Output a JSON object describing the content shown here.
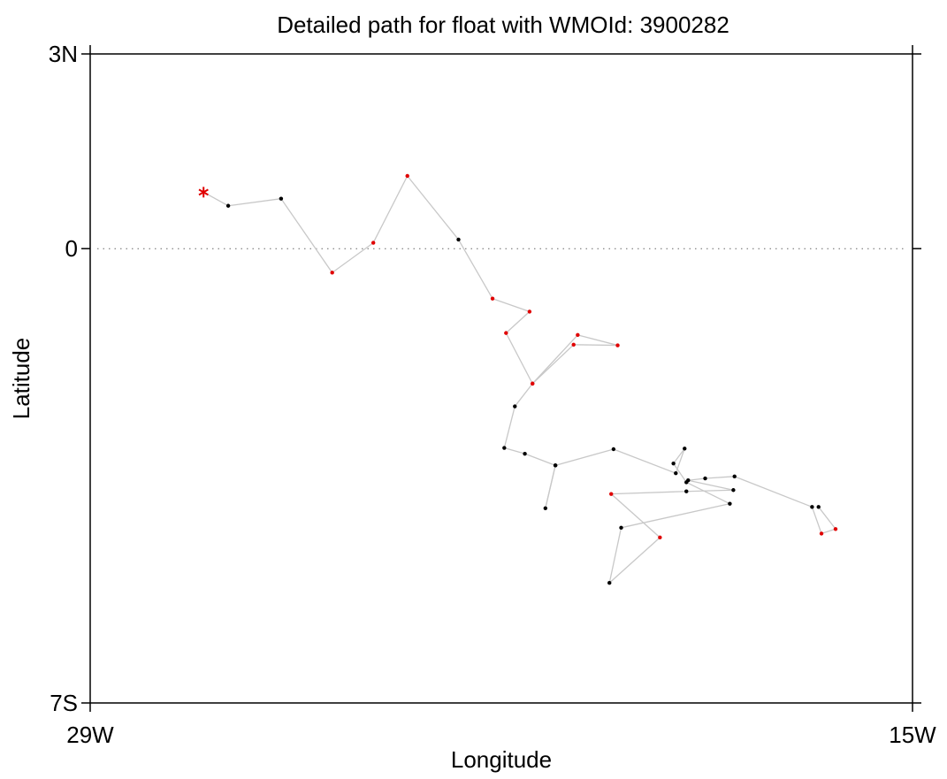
{
  "chart_data": {
    "type": "line",
    "title": "Detailed path for float with WMOId: 3900282",
    "xlabel": "Longitude",
    "ylabel": "Latitude",
    "xlim": [
      -29,
      -15
    ],
    "ylim": [
      -7,
      3
    ],
    "x_ticks": [
      {
        "value": -29,
        "label": "29W"
      },
      {
        "value": -15,
        "label": "15W"
      }
    ],
    "y_ticks": [
      {
        "value": 3,
        "label": "3N"
      },
      {
        "value": 0,
        "label": "0"
      },
      {
        "value": -7,
        "label": "7S"
      }
    ],
    "reference_lines": [
      {
        "axis": "y",
        "value": 0,
        "style": "dotted"
      }
    ],
    "colors": {
      "path": "#c8c8c8",
      "profile_default": "#000000",
      "profile_highlight": "#e00000",
      "start_marker": "#e00000",
      "frame": "#000000"
    },
    "start_marker": {
      "x": -27.07,
      "y": 0.87,
      "symbol": "asterisk"
    },
    "path_points": [
      {
        "x": -27.07,
        "y": 0.87,
        "highlight": true
      },
      {
        "x": -26.65,
        "y": 0.66,
        "highlight": false
      },
      {
        "x": -25.75,
        "y": 0.77,
        "highlight": false
      },
      {
        "x": -24.88,
        "y": -0.37,
        "highlight": true
      },
      {
        "x": -24.18,
        "y": 0.09,
        "highlight": true
      },
      {
        "x": -23.6,
        "y": 1.12,
        "highlight": true
      },
      {
        "x": -22.73,
        "y": 0.14,
        "highlight": false
      },
      {
        "x": -22.15,
        "y": -0.77,
        "highlight": true
      },
      {
        "x": -21.52,
        "y": -0.97,
        "highlight": true
      },
      {
        "x": -21.92,
        "y": -1.3,
        "highlight": true
      },
      {
        "x": -21.47,
        "y": -2.08,
        "highlight": true
      },
      {
        "x": -20.7,
        "y": -1.33,
        "highlight": true
      },
      {
        "x": -20.02,
        "y": -1.49,
        "highlight": true
      },
      {
        "x": -20.77,
        "y": -1.48,
        "highlight": true
      },
      {
        "x": -21.47,
        "y": -2.08,
        "highlight": true
      },
      {
        "x": -21.77,
        "y": -2.43,
        "highlight": false
      },
      {
        "x": -21.95,
        "y": -3.07,
        "highlight": false
      },
      {
        "x": -21.6,
        "y": -3.16,
        "highlight": false
      },
      {
        "x": -21.08,
        "y": -3.34,
        "highlight": false
      },
      {
        "x": -21.25,
        "y": -4.0,
        "highlight": false
      },
      {
        "x": -21.08,
        "y": -3.34,
        "highlight": false
      },
      {
        "x": -20.09,
        "y": -3.09,
        "highlight": false
      },
      {
        "x": -19.03,
        "y": -3.46,
        "highlight": false
      },
      {
        "x": -18.88,
        "y": -3.08,
        "highlight": false
      },
      {
        "x": -19.07,
        "y": -3.31,
        "highlight": false
      },
      {
        "x": -18.85,
        "y": -3.6,
        "highlight": false
      },
      {
        "x": -18.11,
        "y": -3.93,
        "highlight": false
      },
      {
        "x": -19.96,
        "y": -4.3,
        "highlight": false
      },
      {
        "x": -20.16,
        "y": -5.15,
        "highlight": false
      },
      {
        "x": -19.3,
        "y": -4.45,
        "highlight": true
      },
      {
        "x": -20.13,
        "y": -3.78,
        "highlight": true
      },
      {
        "x": -18.85,
        "y": -3.74,
        "highlight": false
      },
      {
        "x": -18.05,
        "y": -3.72,
        "highlight": false
      },
      {
        "x": -18.82,
        "y": -3.57,
        "highlight": false
      },
      {
        "x": -18.53,
        "y": -3.54,
        "highlight": false
      },
      {
        "x": -18.03,
        "y": -3.51,
        "highlight": false
      },
      {
        "x": -16.71,
        "y": -3.98,
        "highlight": false
      },
      {
        "x": -16.55,
        "y": -4.39,
        "highlight": true
      },
      {
        "x": -16.31,
        "y": -4.32,
        "highlight": true
      },
      {
        "x": -16.6,
        "y": -3.98,
        "highlight": false
      }
    ]
  }
}
